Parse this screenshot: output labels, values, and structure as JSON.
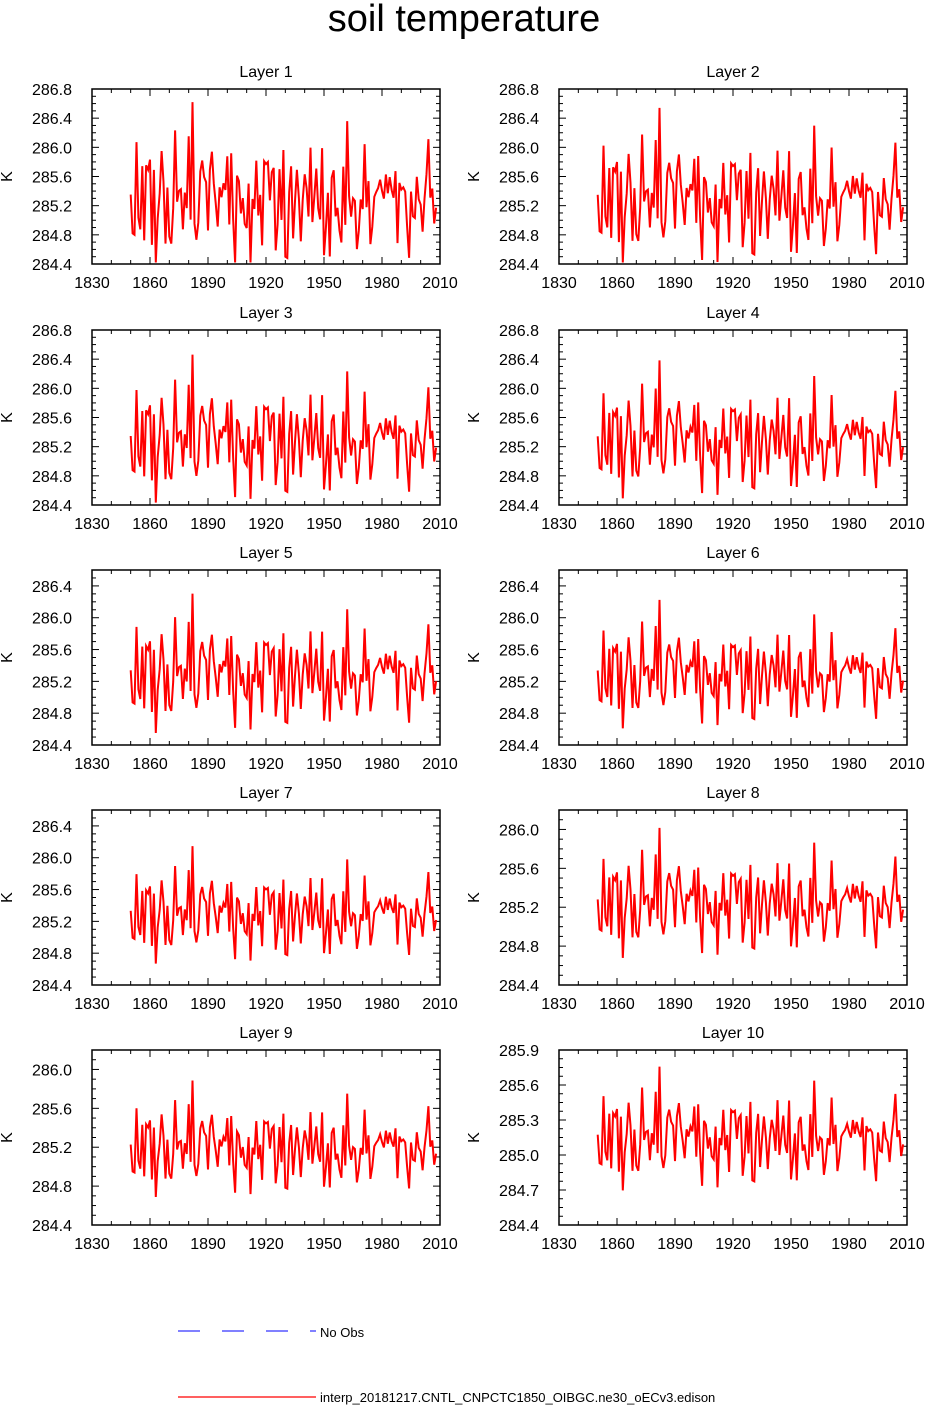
{
  "title": "soil temperature",
  "colors": {
    "model": "#ff0000",
    "obs": "#0000ff",
    "axes": "#000000"
  },
  "legend": {
    "obs_label": "No Obs",
    "model_label": "interp_20181217.CNTL_CNPCTC1850_OIBGC.ne30_oECv3.edison"
  },
  "chart_data": [
    {
      "type": "line",
      "title": "Layer 1",
      "ylabel": "K",
      "xlim": [
        1830,
        2010
      ],
      "ylim": [
        284.4,
        286.8
      ],
      "xticks": [
        1830,
        1860,
        1890,
        1920,
        1950,
        1980,
        2010
      ],
      "yticks": [
        284.4,
        284.8,
        285.2,
        285.6,
        286.0,
        286.4,
        286.8
      ],
      "ytick_labels": [
        "284.4",
        "284.8",
        "285.2",
        "285.6",
        "286.0",
        "286.4",
        "286.8"
      ]
    },
    {
      "type": "line",
      "title": "Layer 2",
      "ylabel": "K",
      "xlim": [
        1830,
        2010
      ],
      "ylim": [
        284.4,
        286.8
      ],
      "xticks": [
        1830,
        1860,
        1890,
        1920,
        1950,
        1980,
        2010
      ],
      "yticks": [
        284.4,
        284.8,
        285.2,
        285.6,
        286.0,
        286.4,
        286.8
      ],
      "ytick_labels": [
        "284.4",
        "284.8",
        "285.2",
        "285.6",
        "286.0",
        "286.4",
        "286.8"
      ]
    },
    {
      "type": "line",
      "title": "Layer 3",
      "ylabel": "K",
      "xlim": [
        1830,
        2010
      ],
      "ylim": [
        284.4,
        286.8
      ],
      "xticks": [
        1830,
        1860,
        1890,
        1920,
        1950,
        1980,
        2010
      ],
      "yticks": [
        284.4,
        284.8,
        285.2,
        285.6,
        286.0,
        286.4,
        286.8
      ],
      "ytick_labels": [
        "284.4",
        "284.8",
        "285.2",
        "285.6",
        "286.0",
        "286.4",
        "286.8"
      ]
    },
    {
      "type": "line",
      "title": "Layer 4",
      "ylabel": "K",
      "xlim": [
        1830,
        2010
      ],
      "ylim": [
        284.4,
        286.8
      ],
      "xticks": [
        1830,
        1860,
        1890,
        1920,
        1950,
        1980,
        2010
      ],
      "yticks": [
        284.4,
        284.8,
        285.2,
        285.6,
        286.0,
        286.4,
        286.8
      ],
      "ytick_labels": [
        "284.4",
        "284.8",
        "285.2",
        "285.6",
        "286.0",
        "286.4",
        "286.8"
      ]
    },
    {
      "type": "line",
      "title": "Layer 5",
      "ylabel": "K",
      "xlim": [
        1830,
        2010
      ],
      "ylim": [
        284.4,
        286.6
      ],
      "xticks": [
        1830,
        1860,
        1890,
        1920,
        1950,
        1980,
        2010
      ],
      "yticks": [
        284.4,
        284.8,
        285.2,
        285.6,
        286.0,
        286.4
      ],
      "ytick_labels": [
        "284.4",
        "284.8",
        "285.2",
        "285.6",
        "286.0",
        "286.4"
      ]
    },
    {
      "type": "line",
      "title": "Layer 6",
      "ylabel": "K",
      "xlim": [
        1830,
        2010
      ],
      "ylim": [
        284.4,
        286.6
      ],
      "xticks": [
        1830,
        1860,
        1890,
        1920,
        1950,
        1980,
        2010
      ],
      "yticks": [
        284.4,
        284.8,
        285.2,
        285.6,
        286.0,
        286.4
      ],
      "ytick_labels": [
        "284.4",
        "284.8",
        "285.2",
        "285.6",
        "286.0",
        "286.4"
      ]
    },
    {
      "type": "line",
      "title": "Layer 7",
      "ylabel": "K",
      "xlim": [
        1830,
        2010
      ],
      "ylim": [
        284.4,
        286.6
      ],
      "xticks": [
        1830,
        1860,
        1890,
        1920,
        1950,
        1980,
        2010
      ],
      "yticks": [
        284.4,
        284.8,
        285.2,
        285.6,
        286.0,
        286.4
      ],
      "ytick_labels": [
        "284.4",
        "284.8",
        "285.2",
        "285.6",
        "286.0",
        "286.4"
      ]
    },
    {
      "type": "line",
      "title": "Layer 8",
      "ylabel": "K",
      "xlim": [
        1830,
        2010
      ],
      "ylim": [
        284.4,
        286.2
      ],
      "xticks": [
        1830,
        1860,
        1890,
        1920,
        1950,
        1980,
        2010
      ],
      "yticks": [
        284.4,
        284.8,
        285.2,
        285.6,
        286.0
      ],
      "ytick_labels": [
        "284.4",
        "284.8",
        "285.2",
        "285.6",
        "286.0"
      ]
    },
    {
      "type": "line",
      "title": "Layer 9",
      "ylabel": "K",
      "xlim": [
        1830,
        2010
      ],
      "ylim": [
        284.4,
        286.2
      ],
      "xticks": [
        1830,
        1860,
        1890,
        1920,
        1950,
        1980,
        2010
      ],
      "yticks": [
        284.4,
        284.8,
        285.2,
        285.6,
        286.0
      ],
      "ytick_labels": [
        "284.4",
        "284.8",
        "285.2",
        "285.6",
        "286.0"
      ]
    },
    {
      "type": "line",
      "title": "Layer 10",
      "ylabel": "K",
      "xlim": [
        1830,
        2010
      ],
      "ylim": [
        284.4,
        285.9
      ],
      "xticks": [
        1830,
        1860,
        1890,
        1920,
        1950,
        1980,
        2010
      ],
      "yticks": [
        284.4,
        284.7,
        285.0,
        285.3,
        285.6,
        285.9
      ],
      "ytick_labels": [
        "284.4",
        "284.7",
        "285.0",
        "285.3",
        "285.6",
        "285.9"
      ]
    }
  ]
}
